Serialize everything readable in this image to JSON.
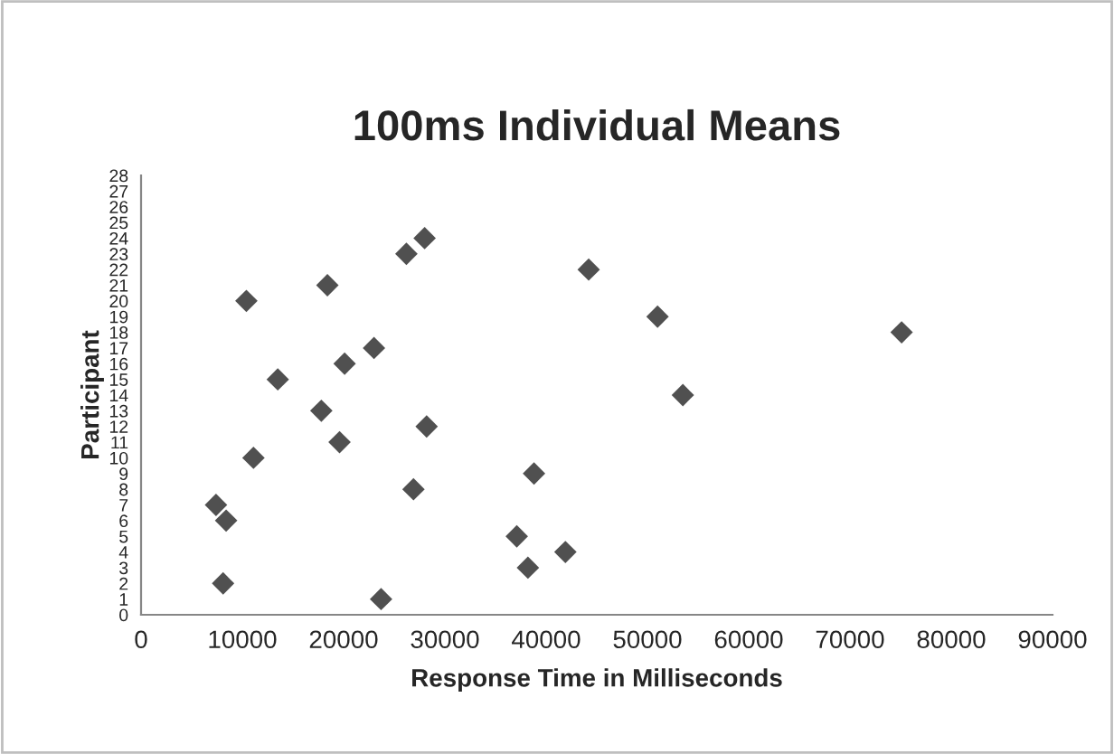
{
  "chart_data": {
    "type": "scatter",
    "title": "100ms Individual Means",
    "xlabel": "Response Time in Milliseconds",
    "ylabel": "Participant",
    "x": [
      23700,
      8100,
      38200,
      41900,
      37100,
      8400,
      7400,
      26900,
      38800,
      11100,
      19600,
      28200,
      17800,
      53500,
      13500,
      20100,
      23000,
      75100,
      51000,
      10400,
      18400,
      44200,
      26200,
      28000
    ],
    "series": [
      {
        "color": "#505050",
        "values": [
          1,
          2,
          3,
          4,
          5,
          6,
          7,
          8,
          9,
          10,
          11,
          12,
          13,
          14,
          15,
          16,
          17,
          18,
          19,
          20,
          21,
          22,
          23,
          24
        ]
      }
    ],
    "xlim": [
      0,
      90000
    ],
    "xticks": [
      0,
      10000,
      20000,
      30000,
      40000,
      50000,
      60000,
      70000,
      80000,
      90000
    ],
    "ylim": [
      0,
      28
    ],
    "yticks": [
      0,
      1,
      2,
      3,
      4,
      5,
      6,
      7,
      8,
      9,
      10,
      11,
      12,
      13,
      14,
      15,
      16,
      17,
      18,
      19,
      20,
      21,
      22,
      23,
      24,
      25,
      26,
      27,
      28
    ],
    "marker": "diamond",
    "grid": false,
    "legend": false
  }
}
